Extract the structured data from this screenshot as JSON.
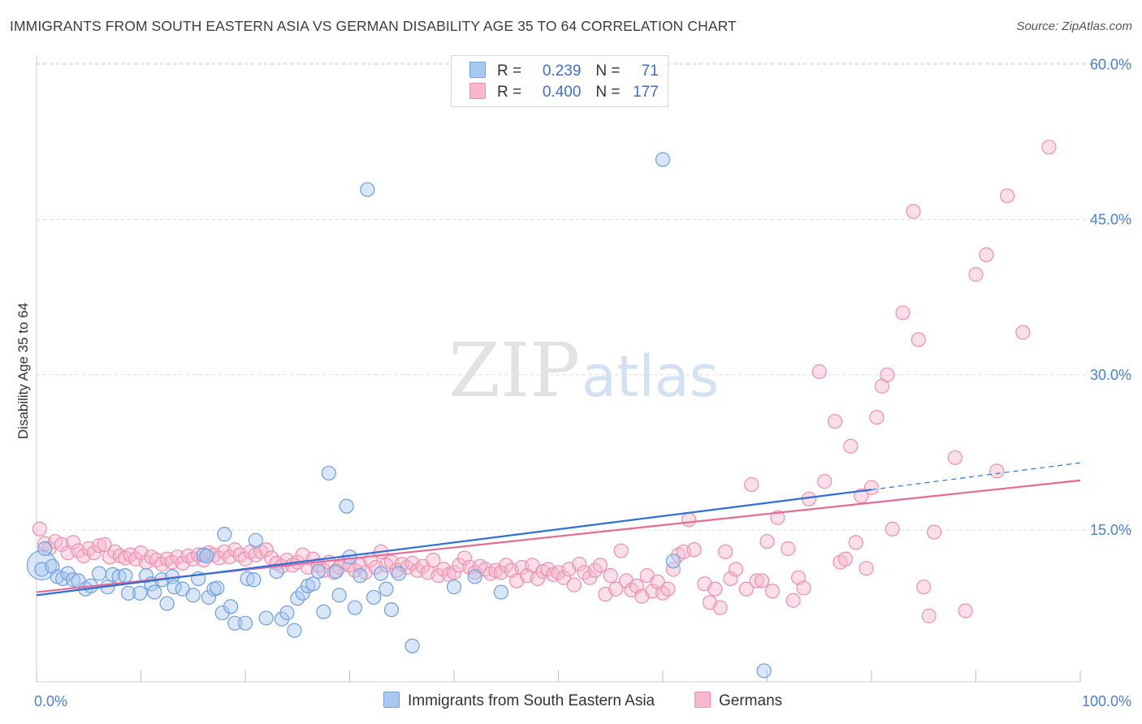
{
  "header": {
    "title": "IMMIGRANTS FROM SOUTH EASTERN ASIA VS GERMAN DISABILITY AGE 35 TO 64 CORRELATION CHART",
    "source": "Source: ZipAtlas.com"
  },
  "watermark": {
    "zip": "ZIP",
    "atlas": "atlas"
  },
  "legend": {
    "series": [
      {
        "r_label": "R =",
        "r_value": "0.239",
        "n_label": "N =",
        "n_value": "71"
      },
      {
        "r_label": "R =",
        "r_value": "0.400",
        "n_label": "N =",
        "n_value": "177"
      }
    ]
  },
  "bottom_legend": {
    "items": [
      {
        "label": "Immigrants from South Eastern Asia"
      },
      {
        "label": "Germans"
      }
    ]
  },
  "colors": {
    "blue_fill": "#a9c8f0",
    "blue_stroke": "#6f9fe0",
    "blue_line": "#2c6fd6",
    "pink_fill": "#f5b8cc",
    "pink_stroke": "#ee8fae",
    "pink_line": "#e46b96",
    "tick_label": "#4a7fd1",
    "grid": "#dcdcdc"
  },
  "chart_data": {
    "type": "scatter",
    "title": "IMMIGRANTS FROM SOUTH EASTERN ASIA VS GERMAN DISABILITY AGE 35 TO 64 CORRELATION CHART",
    "xlabel": "",
    "ylabel": "Disability Age 35 to 64",
    "xlim": [
      0,
      100
    ],
    "ylim": [
      0,
      60
    ],
    "x_tick_labels": [
      "0.0%",
      "100.0%"
    ],
    "y_ticks": [
      15,
      30,
      45,
      60
    ],
    "y_tick_labels": [
      "15.0%",
      "30.0%",
      "45.0%",
      "60.0%"
    ],
    "series": [
      {
        "name": "Immigrants from South Eastern Asia",
        "r": 0.239,
        "n": 71,
        "trend": {
          "x0": 0,
          "y0": 8.7,
          "x1": 80,
          "y1": 18.9,
          "dash_to_x": 100,
          "dash_to_y": 21.5
        },
        "points": [
          [
            0.5,
            11.2
          ],
          [
            0.8,
            13.2
          ],
          [
            1.5,
            11.5
          ],
          [
            2,
            10.5
          ],
          [
            2.5,
            10.3
          ],
          [
            3,
            10.8
          ],
          [
            3.5,
            10.2
          ],
          [
            4,
            10.1
          ],
          [
            4.7,
            9.3
          ],
          [
            5.2,
            9.6
          ],
          [
            6,
            10.8
          ],
          [
            6.8,
            9.5
          ],
          [
            7.3,
            10.7
          ],
          [
            7.9,
            10.5
          ],
          [
            8.5,
            10.6
          ],
          [
            8.8,
            8.9
          ],
          [
            9.9,
            8.9
          ],
          [
            10.5,
            10.6
          ],
          [
            11,
            9.8
          ],
          [
            11.3,
            9
          ],
          [
            12,
            10.2
          ],
          [
            12.5,
            7.9
          ],
          [
            13,
            10.5
          ],
          [
            13.2,
            9.5
          ],
          [
            14,
            9.3
          ],
          [
            15,
            8.7
          ],
          [
            15.5,
            10.3
          ],
          [
            16,
            12.6
          ],
          [
            16.3,
            12.5
          ],
          [
            16.5,
            8.5
          ],
          [
            17,
            9.3
          ],
          [
            17.3,
            9.4
          ],
          [
            17.8,
            7
          ],
          [
            18,
            14.6
          ],
          [
            18.6,
            7.6
          ],
          [
            19,
            6
          ],
          [
            20,
            6
          ],
          [
            20.2,
            10.3
          ],
          [
            20.8,
            10.2
          ],
          [
            21,
            14
          ],
          [
            22,
            6.5
          ],
          [
            23,
            11
          ],
          [
            23.5,
            6.4
          ],
          [
            24,
            7
          ],
          [
            24.7,
            5.3
          ],
          [
            25,
            8.4
          ],
          [
            25.5,
            8.9
          ],
          [
            26,
            9.6
          ],
          [
            26.5,
            9.8
          ],
          [
            27,
            11
          ],
          [
            27.5,
            7.1
          ],
          [
            28,
            20.5
          ],
          [
            28.7,
            11
          ],
          [
            29,
            8.7
          ],
          [
            29.7,
            17.3
          ],
          [
            30,
            12.4
          ],
          [
            30.5,
            7.5
          ],
          [
            31,
            10.6
          ],
          [
            31.7,
            47.9
          ],
          [
            32.3,
            8.5
          ],
          [
            33,
            10.8
          ],
          [
            33.5,
            9.3
          ],
          [
            34,
            7.3
          ],
          [
            34.7,
            10.8
          ],
          [
            36,
            3.8
          ],
          [
            40,
            9.5
          ],
          [
            42,
            10.5
          ],
          [
            44.5,
            9
          ],
          [
            60,
            50.8
          ],
          [
            69.7,
            1.4
          ],
          [
            61,
            12
          ]
        ]
      },
      {
        "name": "Germans",
        "r": 0.4,
        "n": 177,
        "trend": {
          "x0": 0,
          "y0": 9.0,
          "x1": 100,
          "y1": 19.8
        },
        "points": [
          [
            0.3,
            15.1
          ],
          [
            0.8,
            13.7
          ],
          [
            1.2,
            13.2
          ],
          [
            1.8,
            13.9
          ],
          [
            2.4,
            13.6
          ],
          [
            3,
            12.8
          ],
          [
            3.5,
            13.8
          ],
          [
            4,
            13
          ],
          [
            4.5,
            12.5
          ],
          [
            5,
            13.2
          ],
          [
            5.5,
            12.8
          ],
          [
            6,
            13.5
          ],
          [
            6.5,
            13.6
          ],
          [
            7,
            12.4
          ],
          [
            7.5,
            12.9
          ],
          [
            8,
            12.5
          ],
          [
            8.5,
            12.3
          ],
          [
            9,
            12.6
          ],
          [
            9.5,
            12.2
          ],
          [
            10,
            12.8
          ],
          [
            10.5,
            11.9
          ],
          [
            11,
            12.4
          ],
          [
            11.5,
            12.1
          ],
          [
            12,
            11.7
          ],
          [
            12.5,
            12.2
          ],
          [
            13,
            11.9
          ],
          [
            13.5,
            12.4
          ],
          [
            14,
            11.8
          ],
          [
            14.5,
            12.5
          ],
          [
            15,
            12.2
          ],
          [
            15.5,
            12.6
          ],
          [
            16,
            12.1
          ],
          [
            16.5,
            12.8
          ],
          [
            17,
            12.6
          ],
          [
            17.5,
            12.3
          ],
          [
            18,
            12.9
          ],
          [
            18.5,
            12.4
          ],
          [
            19,
            13.1
          ],
          [
            19.5,
            12.6
          ],
          [
            20,
            12.2
          ],
          [
            20.5,
            12.9
          ],
          [
            21,
            12.6
          ],
          [
            21.5,
            12.9
          ],
          [
            22,
            13.1
          ],
          [
            22.5,
            12.3
          ],
          [
            23,
            11.8
          ],
          [
            23.5,
            11.5
          ],
          [
            24,
            12.1
          ],
          [
            24.5,
            11.6
          ],
          [
            25,
            11.9
          ],
          [
            25.5,
            12.6
          ],
          [
            26,
            11.4
          ],
          [
            26.5,
            12.2
          ],
          [
            27,
            11.6
          ],
          [
            27.5,
            11.1
          ],
          [
            28,
            11.9
          ],
          [
            28.5,
            10.9
          ],
          [
            29,
            11.4
          ],
          [
            29.5,
            11.9
          ],
          [
            30,
            11.6
          ],
          [
            30.5,
            11.1
          ],
          [
            31,
            11.6
          ],
          [
            31.5,
            10.9
          ],
          [
            32,
            12.1
          ],
          [
            32.5,
            11.4
          ],
          [
            33,
            12.9
          ],
          [
            33.5,
            11.6
          ],
          [
            34,
            11.9
          ],
          [
            34.5,
            11.1
          ],
          [
            35,
            11.7
          ],
          [
            35.5,
            11.4
          ],
          [
            36,
            11.8
          ],
          [
            36.5,
            11.1
          ],
          [
            37,
            11.5
          ],
          [
            37.5,
            10.9
          ],
          [
            38,
            12.1
          ],
          [
            38.5,
            10.6
          ],
          [
            39,
            11.2
          ],
          [
            39.5,
            10.7
          ],
          [
            40,
            10.9
          ],
          [
            40.5,
            11.6
          ],
          [
            41,
            12.3
          ],
          [
            41.5,
            11.4
          ],
          [
            42,
            10.9
          ],
          [
            42.5,
            11.5
          ],
          [
            43,
            11.2
          ],
          [
            43.5,
            10.8
          ],
          [
            44,
            11.1
          ],
          [
            44.5,
            10.9
          ],
          [
            45,
            11.6
          ],
          [
            45.5,
            11.1
          ],
          [
            46,
            10.1
          ],
          [
            46.5,
            11.4
          ],
          [
            47,
            10.6
          ],
          [
            47.5,
            11.6
          ],
          [
            48,
            10.3
          ],
          [
            48.5,
            11
          ],
          [
            49,
            11.2
          ],
          [
            49.5,
            10.7
          ],
          [
            50,
            10.9
          ],
          [
            50.5,
            10.4
          ],
          [
            51,
            11.2
          ],
          [
            51.5,
            9.7
          ],
          [
            52,
            11.7
          ],
          [
            52.5,
            10.9
          ],
          [
            53,
            10.4
          ],
          [
            53.5,
            11.1
          ],
          [
            54,
            11.6
          ],
          [
            54.5,
            8.8
          ],
          [
            55,
            10.6
          ],
          [
            55.5,
            9.3
          ],
          [
            56,
            13
          ],
          [
            56.5,
            10.1
          ],
          [
            57,
            9.2
          ],
          [
            57.5,
            9.6
          ],
          [
            58,
            8.6
          ],
          [
            58.5,
            10.6
          ],
          [
            59,
            9.1
          ],
          [
            59.5,
            10
          ],
          [
            60,
            8.9
          ],
          [
            60.5,
            9.3
          ],
          [
            61,
            11.2
          ],
          [
            61.5,
            12.6
          ],
          [
            62,
            12.9
          ],
          [
            62.5,
            16
          ],
          [
            63,
            13.1
          ],
          [
            64,
            9.8
          ],
          [
            64.5,
            8
          ],
          [
            65,
            9.3
          ],
          [
            65.5,
            7.5
          ],
          [
            66,
            12.9
          ],
          [
            66.5,
            10.3
          ],
          [
            67,
            11.2
          ],
          [
            68,
            9.3
          ],
          [
            68.5,
            19.4
          ],
          [
            69,
            10.1
          ],
          [
            69.5,
            10.1
          ],
          [
            70,
            13.9
          ],
          [
            70.5,
            9.1
          ],
          [
            71,
            16.2
          ],
          [
            72,
            13.2
          ],
          [
            72.5,
            8.2
          ],
          [
            73,
            10.4
          ],
          [
            73.5,
            9.4
          ],
          [
            74,
            18
          ],
          [
            75,
            30.3
          ],
          [
            75.5,
            19.7
          ],
          [
            76.5,
            25.5
          ],
          [
            77,
            11.9
          ],
          [
            77.5,
            12.2
          ],
          [
            78,
            23.1
          ],
          [
            78.5,
            13.8
          ],
          [
            79,
            18.3
          ],
          [
            79.5,
            11.3
          ],
          [
            80,
            19.1
          ],
          [
            80.5,
            25.9
          ],
          [
            81,
            28.9
          ],
          [
            81.5,
            30
          ],
          [
            82,
            15.1
          ],
          [
            83,
            36
          ],
          [
            84,
            45.8
          ],
          [
            84.5,
            33.4
          ],
          [
            85,
            9.5
          ],
          [
            85.5,
            6.7
          ],
          [
            86,
            14.8
          ],
          [
            88,
            22
          ],
          [
            89,
            7.2
          ],
          [
            90,
            39.7
          ],
          [
            91,
            41.6
          ],
          [
            92,
            20.7
          ],
          [
            93,
            47.3
          ],
          [
            94.5,
            34.1
          ],
          [
            97,
            52
          ]
        ]
      }
    ]
  }
}
